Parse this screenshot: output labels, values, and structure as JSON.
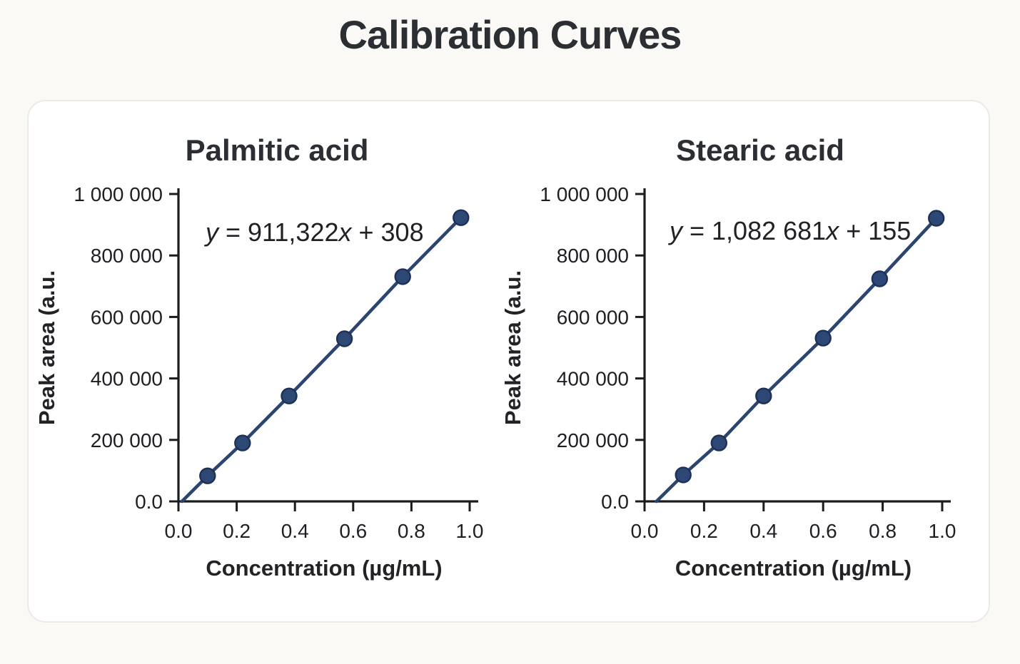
{
  "page": {
    "title": "Calibration Curves"
  },
  "colors": {
    "background": "#faf9f5",
    "card": "#ffffff",
    "card_border": "#eceae3",
    "text": "#2b2e33",
    "axis": "#1b1c1e",
    "line": "#2c4570",
    "marker_fill": "#2e4875",
    "marker_stroke": "#1d3156"
  },
  "chart_data": [
    {
      "type": "scatter",
      "title": "Palmitic acid",
      "equation": "y = 911,322x + 308",
      "xlabel": "Concentration (µg/mL)",
      "ylabel": "Peak area (a.u.",
      "xlim": [
        0.0,
        1.0
      ],
      "ylim": [
        0,
        1000000
      ],
      "xticks": {
        "values": [
          0.0,
          0.2,
          0.4,
          0.6,
          0.8,
          1.0
        ],
        "labels": [
          "0.0",
          "0.2",
          "0.4",
          "0.6",
          "0.8",
          "1.0"
        ]
      },
      "yticks": {
        "values": [
          0,
          200000,
          400000,
          600000,
          800000,
          1000000
        ],
        "labels": [
          "0.0",
          "200 000",
          "400 000",
          "600 000",
          "800 000",
          "1 000 000"
        ]
      },
      "points": {
        "x": [
          0.1,
          0.22,
          0.38,
          0.57,
          0.77,
          0.97
        ],
        "y": [
          83000,
          190000,
          343000,
          529000,
          731000,
          923000
        ]
      },
      "fit_line_start_x": 0.012,
      "grid": false,
      "legend": "none"
    },
    {
      "type": "scatter",
      "title": "Stearic acid",
      "equation": "y = 1,082 681x + 155",
      "xlabel": "Concentration (µg/mL)",
      "ylabel": "Peak area (a.u.",
      "xlim": [
        0.0,
        1.0
      ],
      "ylim": [
        0,
        1000000
      ],
      "xticks": {
        "values": [
          0.0,
          0.2,
          0.4,
          0.6,
          0.8,
          1.0
        ],
        "labels": [
          "0.0",
          "0.2",
          "0.4",
          "0.6",
          "0.8",
          "1.0"
        ]
      },
      "yticks": {
        "values": [
          0,
          200000,
          400000,
          600000,
          800000,
          1000000
        ],
        "labels": [
          "0.0",
          "200 000",
          "400 000",
          "600 000",
          "800 000",
          "1 000 000"
        ]
      },
      "points": {
        "x": [
          0.13,
          0.25,
          0.4,
          0.6,
          0.79,
          0.98
        ],
        "y": [
          86000,
          190000,
          343000,
          531000,
          724000,
          921000
        ]
      },
      "fit_line_start_x": 0.04,
      "grid": false,
      "legend": "none"
    }
  ]
}
